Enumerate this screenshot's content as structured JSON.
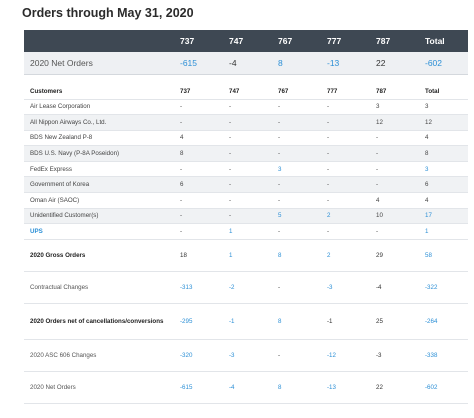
{
  "title": "Orders through May 31, 2020",
  "summary": {
    "headers": [
      "",
      "737",
      "747",
      "767",
      "777",
      "787",
      "Total"
    ],
    "row_label": "2020 Net Orders",
    "row_values": [
      "-615",
      "-4",
      "8",
      "-13",
      "22",
      "-602"
    ],
    "row_blue": [
      true,
      false,
      true,
      true,
      false,
      true
    ]
  },
  "detail": {
    "headers": [
      "Customers",
      "737",
      "747",
      "767",
      "777",
      "787",
      "Total"
    ],
    "customers": [
      {
        "name": "Air Lease Corporation",
        "values": [
          "-",
          "-",
          "-",
          "-",
          "3",
          "3"
        ],
        "blue": [
          false,
          false,
          false,
          false,
          false,
          false
        ]
      },
      {
        "name": "All Nippon Airways Co., Ltd.",
        "values": [
          "-",
          "-",
          "-",
          "-",
          "12",
          "12"
        ],
        "blue": [
          false,
          false,
          false,
          false,
          false,
          false
        ]
      },
      {
        "name": "BDS New Zealand P-8",
        "values": [
          "4",
          "-",
          "-",
          "-",
          "-",
          "4"
        ],
        "blue": [
          false,
          false,
          false,
          false,
          false,
          false
        ]
      },
      {
        "name": "BDS U.S. Navy (P-8A Poseidon)",
        "values": [
          "8",
          "-",
          "-",
          "-",
          "-",
          "8"
        ],
        "blue": [
          false,
          false,
          false,
          false,
          false,
          false
        ]
      },
      {
        "name": "FedEx Express",
        "values": [
          "-",
          "-",
          "3",
          "-",
          "-",
          "3"
        ],
        "blue": [
          false,
          false,
          true,
          false,
          false,
          true
        ]
      },
      {
        "name": "Government of Korea",
        "values": [
          "6",
          "-",
          "-",
          "-",
          "-",
          "6"
        ],
        "blue": [
          false,
          false,
          false,
          false,
          false,
          false
        ]
      },
      {
        "name": "Oman Air (SAOC)",
        "values": [
          "-",
          "-",
          "-",
          "-",
          "4",
          "4"
        ],
        "blue": [
          false,
          false,
          false,
          false,
          false,
          false
        ]
      },
      {
        "name": "Unidentified Customer(s)",
        "values": [
          "-",
          "-",
          "5",
          "2",
          "10",
          "17"
        ],
        "blue": [
          false,
          false,
          true,
          true,
          false,
          true
        ]
      },
      {
        "name": "UPS",
        "values": [
          "-",
          "1",
          "-",
          "-",
          "-",
          "1"
        ],
        "blue": [
          false,
          true,
          false,
          false,
          false,
          true
        ],
        "name_blue": true
      }
    ],
    "totals": [
      {
        "label": "2020 Gross Orders",
        "bold": true,
        "values": [
          "18",
          "1",
          "8",
          "2",
          "29",
          "58"
        ],
        "blue": [
          false,
          true,
          true,
          true,
          false,
          true
        ]
      },
      {
        "label": "Contractual Changes",
        "bold": false,
        "values": [
          "-313",
          "-2",
          "-",
          "-3",
          "-4",
          "-322"
        ],
        "blue": [
          true,
          true,
          false,
          true,
          false,
          true
        ]
      },
      {
        "label": "2020 Orders net of cancellations/conversions",
        "bold": true,
        "values": [
          "-295",
          "-1",
          "8",
          "-1",
          "25",
          "-264"
        ],
        "blue": [
          true,
          true,
          true,
          false,
          false,
          true
        ]
      },
      {
        "label": "2020 ASC 606 Changes",
        "bold": false,
        "values": [
          "-320",
          "-3",
          "-",
          "-12",
          "-3",
          "-338"
        ],
        "blue": [
          true,
          true,
          false,
          true,
          false,
          true
        ]
      },
      {
        "label": "2020 Net Orders",
        "bold": false,
        "values": [
          "-615",
          "-4",
          "8",
          "-13",
          "22",
          "-602"
        ],
        "blue": [
          true,
          true,
          true,
          true,
          false,
          true
        ]
      }
    ]
  }
}
